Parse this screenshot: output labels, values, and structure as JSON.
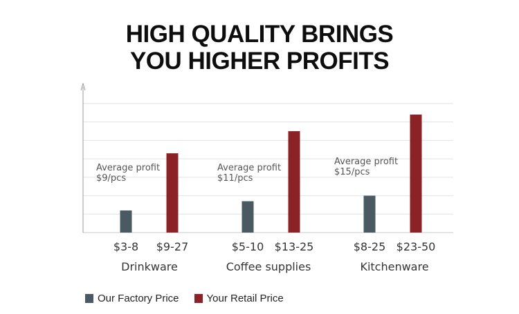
{
  "title": {
    "line1": "HIGH QUALITY BRINGS",
    "line2": "YOU HIGHER PROFITS"
  },
  "colors": {
    "factory": "#4a5a63",
    "retail": "#8b2326",
    "grid": "#e2e2e2",
    "axis": "#9a9a9a"
  },
  "legend": {
    "factory_label": "Our Factory Price",
    "retail_label": "Your Retail Price"
  },
  "chart_data": {
    "type": "bar",
    "title": "HIGH QUALITY BRINGS YOU HIGHER PROFITS",
    "categories": [
      "Drinkware",
      "Coffee supplies",
      "Kitchenware"
    ],
    "series": [
      {
        "name": "Our Factory Price",
        "values": [
          1.2,
          1.7,
          2.0
        ],
        "labels": [
          "$3-8",
          "$5-10",
          "$8-25"
        ]
      },
      {
        "name": "Your Retail Price",
        "values": [
          4.3,
          5.5,
          6.4
        ],
        "labels": [
          "$9-27",
          "$13-25",
          "$23-50"
        ]
      }
    ],
    "annotations": [
      {
        "line1": "Average profit",
        "line2": "$9/pcs"
      },
      {
        "line1": "Average profit",
        "line2": "$11/pcs"
      },
      {
        "line1": "Average profit",
        "line2": "$15/pcs"
      }
    ],
    "ylim": [
      0,
      7
    ],
    "grid": true,
    "legend_position": "bottom-left"
  }
}
